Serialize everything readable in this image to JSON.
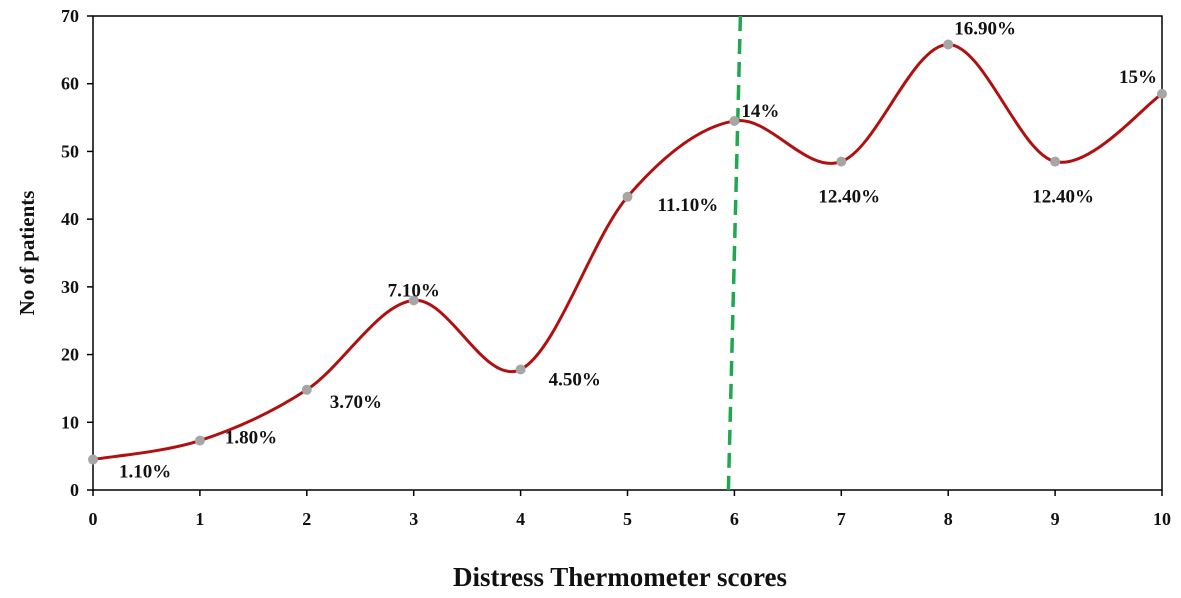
{
  "chart_data": {
    "type": "line",
    "smooth": true,
    "title": "",
    "xlabel": "Distress Thermometer scores",
    "ylabel": "No of patients",
    "xlim": [
      0,
      10
    ],
    "ylim": [
      0,
      70
    ],
    "x_ticks": [
      "0",
      "1",
      "2",
      "3",
      "4",
      "5",
      "6",
      "7",
      "8",
      "9",
      "10"
    ],
    "y_ticks": [
      "0",
      "10",
      "20",
      "30",
      "40",
      "50",
      "60",
      "70"
    ],
    "grid": false,
    "legend": "none",
    "series": [
      {
        "x": [
          0,
          1,
          2,
          3,
          4,
          5,
          6,
          7,
          8,
          9,
          10
        ],
        "values": [
          4.5,
          7.3,
          14.8,
          28,
          17.8,
          43.3,
          54.5,
          48.5,
          65.8,
          48.5,
          58.5
        ],
        "labels": [
          "1.10%",
          "1.80%",
          "3.70%",
          "7.10%",
          "4.50%",
          "11.10%",
          "14%",
          "12.40%",
          "16.90%",
          "12.40%",
          "15%"
        ]
      }
    ],
    "annotations": [
      {
        "type": "vertical-dashed-line",
        "x": 6,
        "color": "#1fa84f"
      }
    ],
    "colors": {
      "line": "#b01010",
      "marker": "#a6a6a6",
      "axis": "#000000",
      "cutoff": "#1fa84f"
    }
  }
}
